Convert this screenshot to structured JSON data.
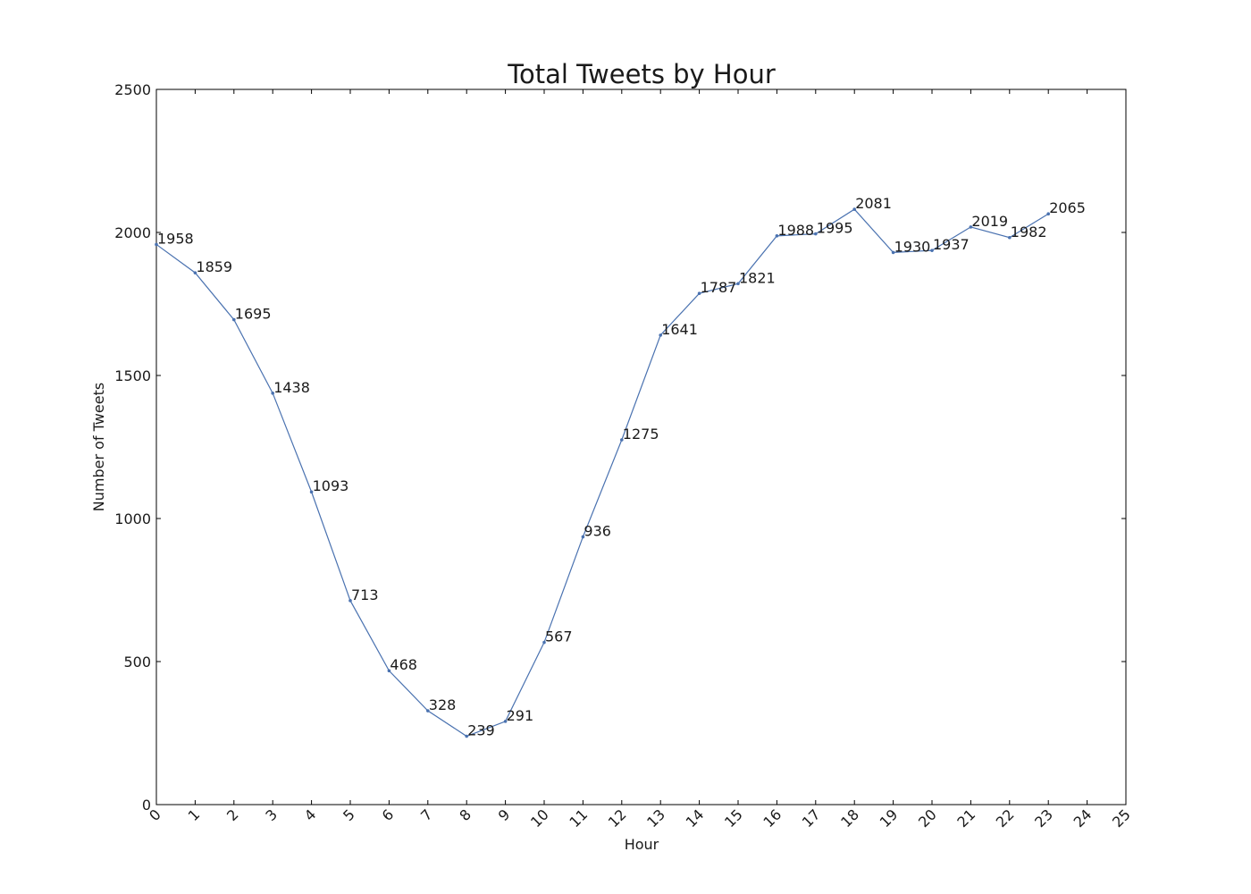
{
  "chart_data": {
    "type": "line",
    "title": "Total Tweets by Hour",
    "xlabel": "Hour",
    "ylabel": "Number of Tweets",
    "xlim": [
      0,
      25
    ],
    "ylim": [
      0,
      2500
    ],
    "x_ticks": [
      0,
      1,
      2,
      3,
      4,
      5,
      6,
      7,
      8,
      9,
      10,
      11,
      12,
      13,
      14,
      15,
      16,
      17,
      18,
      19,
      20,
      21,
      22,
      23,
      24,
      25
    ],
    "y_ticks": [
      0,
      500,
      1000,
      1500,
      2000,
      2500
    ],
    "grid": false,
    "legend": "none",
    "line_color": "#4a72b0",
    "x": [
      0,
      1,
      2,
      3,
      4,
      5,
      6,
      7,
      8,
      9,
      10,
      11,
      12,
      13,
      14,
      15,
      16,
      17,
      18,
      19,
      20,
      21,
      22,
      23
    ],
    "values": [
      1958,
      1859,
      1695,
      1438,
      1093,
      713,
      468,
      328,
      239,
      291,
      567,
      936,
      1275,
      1641,
      1787,
      1821,
      1988,
      1995,
      2081,
      1930,
      1937,
      2019,
      1982,
      2065
    ]
  }
}
